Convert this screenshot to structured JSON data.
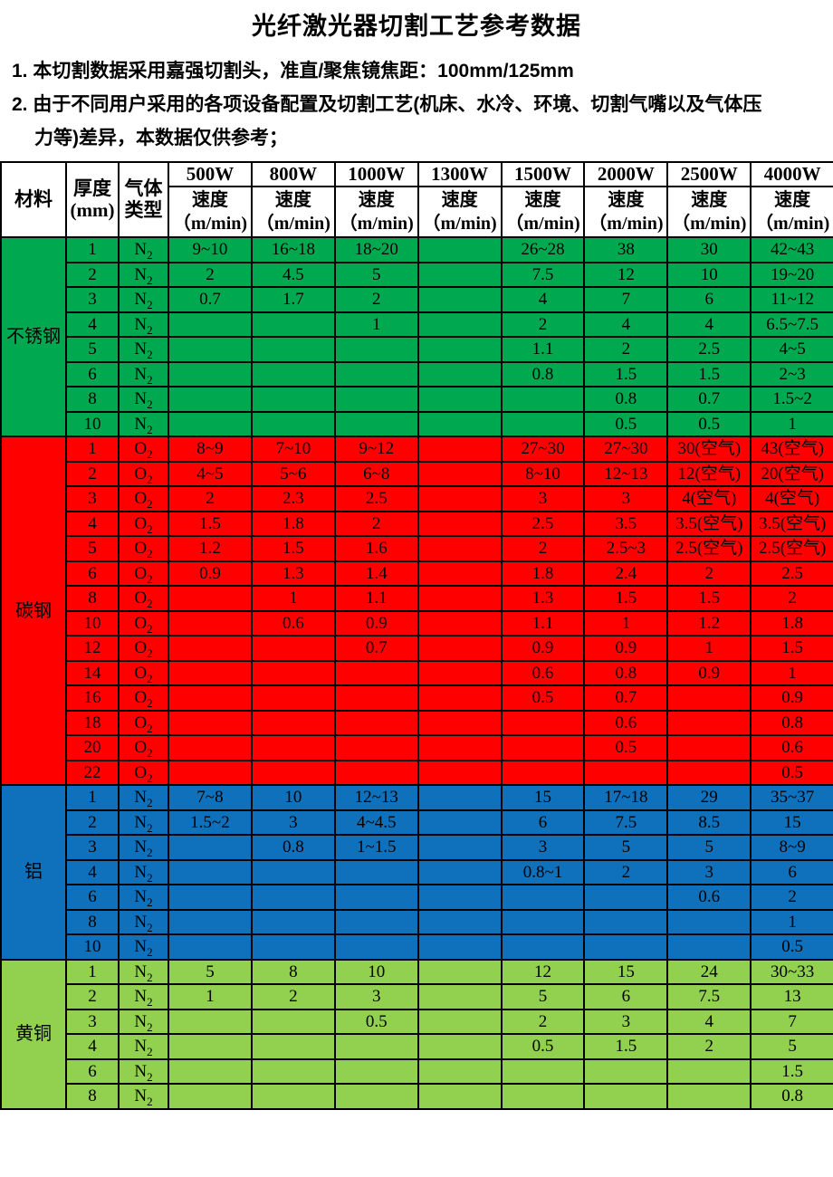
{
  "page": {
    "title": "光纤激光器切割工艺参考数据"
  },
  "notes": [
    {
      "text": "1. 本切割数据采用嘉强切割头，准直/聚焦镜焦距：100mm/125mm",
      "indent": false
    },
    {
      "text": "2. 由于不同用户采用的各项设备配置及切割工艺(机床、水冷、环境、切割气嘴以及气体压",
      "indent": false
    },
    {
      "text": "力等)差异，本数据仅供参考；",
      "indent": true
    }
  ],
  "table": {
    "columns": {
      "material": "材料",
      "thickness_lines": [
        "厚度",
        "(mm)"
      ],
      "gas_lines": [
        "气体",
        "类型"
      ]
    },
    "powers": [
      "500W",
      "800W",
      "1000W",
      "1300W",
      "1500W",
      "2000W",
      "2500W",
      "4000W"
    ],
    "speed_header_lines": [
      "速度",
      "（m/min)"
    ],
    "colors": {
      "stainless": "#00A950",
      "carbon": "#FF0000",
      "aluminum": "#0F71BC",
      "brass": "#92D050",
      "grid": "#000000"
    },
    "sections": [
      {
        "name": "不锈钢",
        "key": "stainless",
        "bg": "#00A950",
        "gas": "N2",
        "rows": [
          {
            "t": "1",
            "v": [
              "9~10",
              "16~18",
              "18~20",
              "",
              "26~28",
              "38",
              "30",
              "42~43"
            ]
          },
          {
            "t": "2",
            "v": [
              "2",
              "4.5",
              "5",
              "",
              "7.5",
              "12",
              "10",
              "19~20"
            ]
          },
          {
            "t": "3",
            "v": [
              "0.7",
              "1.7",
              "2",
              "",
              "4",
              "7",
              "6",
              "11~12"
            ]
          },
          {
            "t": "4",
            "v": [
              "",
              "",
              "1",
              "",
              "2",
              "4",
              "4",
              "6.5~7.5"
            ]
          },
          {
            "t": "5",
            "v": [
              "",
              "",
              "",
              "",
              "1.1",
              "2",
              "2.5",
              "4~5"
            ]
          },
          {
            "t": "6",
            "v": [
              "",
              "",
              "",
              "",
              "0.8",
              "1.5",
              "1.5",
              "2~3"
            ]
          },
          {
            "t": "8",
            "v": [
              "",
              "",
              "",
              "",
              "",
              "0.8",
              "0.7",
              "1.5~2"
            ]
          },
          {
            "t": "10",
            "v": [
              "",
              "",
              "",
              "",
              "",
              "0.5",
              "0.5",
              "1"
            ]
          }
        ]
      },
      {
        "name": "碳钢",
        "key": "carbon",
        "bg": "#FF0000",
        "gas": "O2",
        "rows": [
          {
            "t": "1",
            "v": [
              "8~9",
              "7~10",
              "9~12",
              "",
              "27~30",
              "27~30",
              "30(空气)",
              "43(空气)"
            ]
          },
          {
            "t": "2",
            "v": [
              "4~5",
              "5~6",
              "6~8",
              "",
              "8~10",
              "12~13",
              "12(空气)",
              "20(空气)"
            ]
          },
          {
            "t": "3",
            "v": [
              "2",
              "2.3",
              "2.5",
              "",
              "3",
              "3",
              "4(空气)",
              "4(空气)"
            ]
          },
          {
            "t": "4",
            "v": [
              "1.5",
              "1.8",
              "2",
              "",
              "2.5",
              "3.5",
              "3.5(空气)",
              "3.5(空气)"
            ]
          },
          {
            "t": "5",
            "v": [
              "1.2",
              "1.5",
              "1.6",
              "",
              "2",
              "2.5~3",
              "2.5(空气)",
              "2.5(空气)"
            ]
          },
          {
            "t": "6",
            "v": [
              "0.9",
              "1.3",
              "1.4",
              "",
              "1.8",
              "2.4",
              "2",
              "2.5"
            ]
          },
          {
            "t": "8",
            "v": [
              "",
              "1",
              "1.1",
              "",
              "1.3",
              "1.5",
              "1.5",
              "2"
            ]
          },
          {
            "t": "10",
            "v": [
              "",
              "0.6",
              "0.9",
              "",
              "1.1",
              "1",
              "1.2",
              "1.8"
            ]
          },
          {
            "t": "12",
            "v": [
              "",
              "",
              "0.7",
              "",
              "0.9",
              "0.9",
              "1",
              "1.5"
            ]
          },
          {
            "t": "14",
            "v": [
              "",
              "",
              "",
              "",
              "0.6",
              "0.8",
              "0.9",
              "1"
            ]
          },
          {
            "t": "16",
            "v": [
              "",
              "",
              "",
              "",
              "0.5",
              "0.7",
              "",
              "0.9"
            ]
          },
          {
            "t": "18",
            "v": [
              "",
              "",
              "",
              "",
              "",
              "0.6",
              "",
              "0.8"
            ]
          },
          {
            "t": "20",
            "v": [
              "",
              "",
              "",
              "",
              "",
              "0.5",
              "",
              "0.6"
            ]
          },
          {
            "t": "22",
            "v": [
              "",
              "",
              "",
              "",
              "",
              "",
              "",
              "0.5"
            ]
          }
        ]
      },
      {
        "name": "铝",
        "key": "aluminum",
        "bg": "#0F71BC",
        "gas": "N2",
        "rows": [
          {
            "t": "1",
            "v": [
              "7~8",
              "10",
              "12~13",
              "",
              "15",
              "17~18",
              "29",
              "35~37"
            ]
          },
          {
            "t": "2",
            "v": [
              "1.5~2",
              "3",
              "4~4.5",
              "",
              "6",
              "7.5",
              "8.5",
              "15"
            ]
          },
          {
            "t": "3",
            "v": [
              "",
              "0.8",
              "1~1.5",
              "",
              "3",
              "5",
              "5",
              "8~9"
            ]
          },
          {
            "t": "4",
            "v": [
              "",
              "",
              "",
              "",
              "0.8~1",
              "2",
              "3",
              "6"
            ]
          },
          {
            "t": "6",
            "v": [
              "",
              "",
              "",
              "",
              "",
              "",
              "0.6",
              "2"
            ]
          },
          {
            "t": "8",
            "v": [
              "",
              "",
              "",
              "",
              "",
              "",
              "",
              "1"
            ]
          },
          {
            "t": "10",
            "v": [
              "",
              "",
              "",
              "",
              "",
              "",
              "",
              "0.5"
            ]
          }
        ]
      },
      {
        "name": "黄铜",
        "key": "brass",
        "bg": "#92D050",
        "gas": "N2",
        "rows": [
          {
            "t": "1",
            "v": [
              "5",
              "8",
              "10",
              "",
              "12",
              "15",
              "24",
              "30~33"
            ]
          },
          {
            "t": "2",
            "v": [
              "1",
              "2",
              "3",
              "",
              "5",
              "6",
              "7.5",
              "13"
            ]
          },
          {
            "t": "3",
            "v": [
              "",
              "",
              "0.5",
              "",
              "2",
              "3",
              "4",
              "7"
            ]
          },
          {
            "t": "4",
            "v": [
              "",
              "",
              "",
              "",
              "0.5",
              "1.5",
              "2",
              "5"
            ]
          },
          {
            "t": "6",
            "v": [
              "",
              "",
              "",
              "",
              "",
              "",
              "",
              "1.5"
            ]
          },
          {
            "t": "8",
            "v": [
              "",
              "",
              "",
              "",
              "",
              "",
              "",
              "0.8"
            ]
          }
        ]
      }
    ]
  }
}
